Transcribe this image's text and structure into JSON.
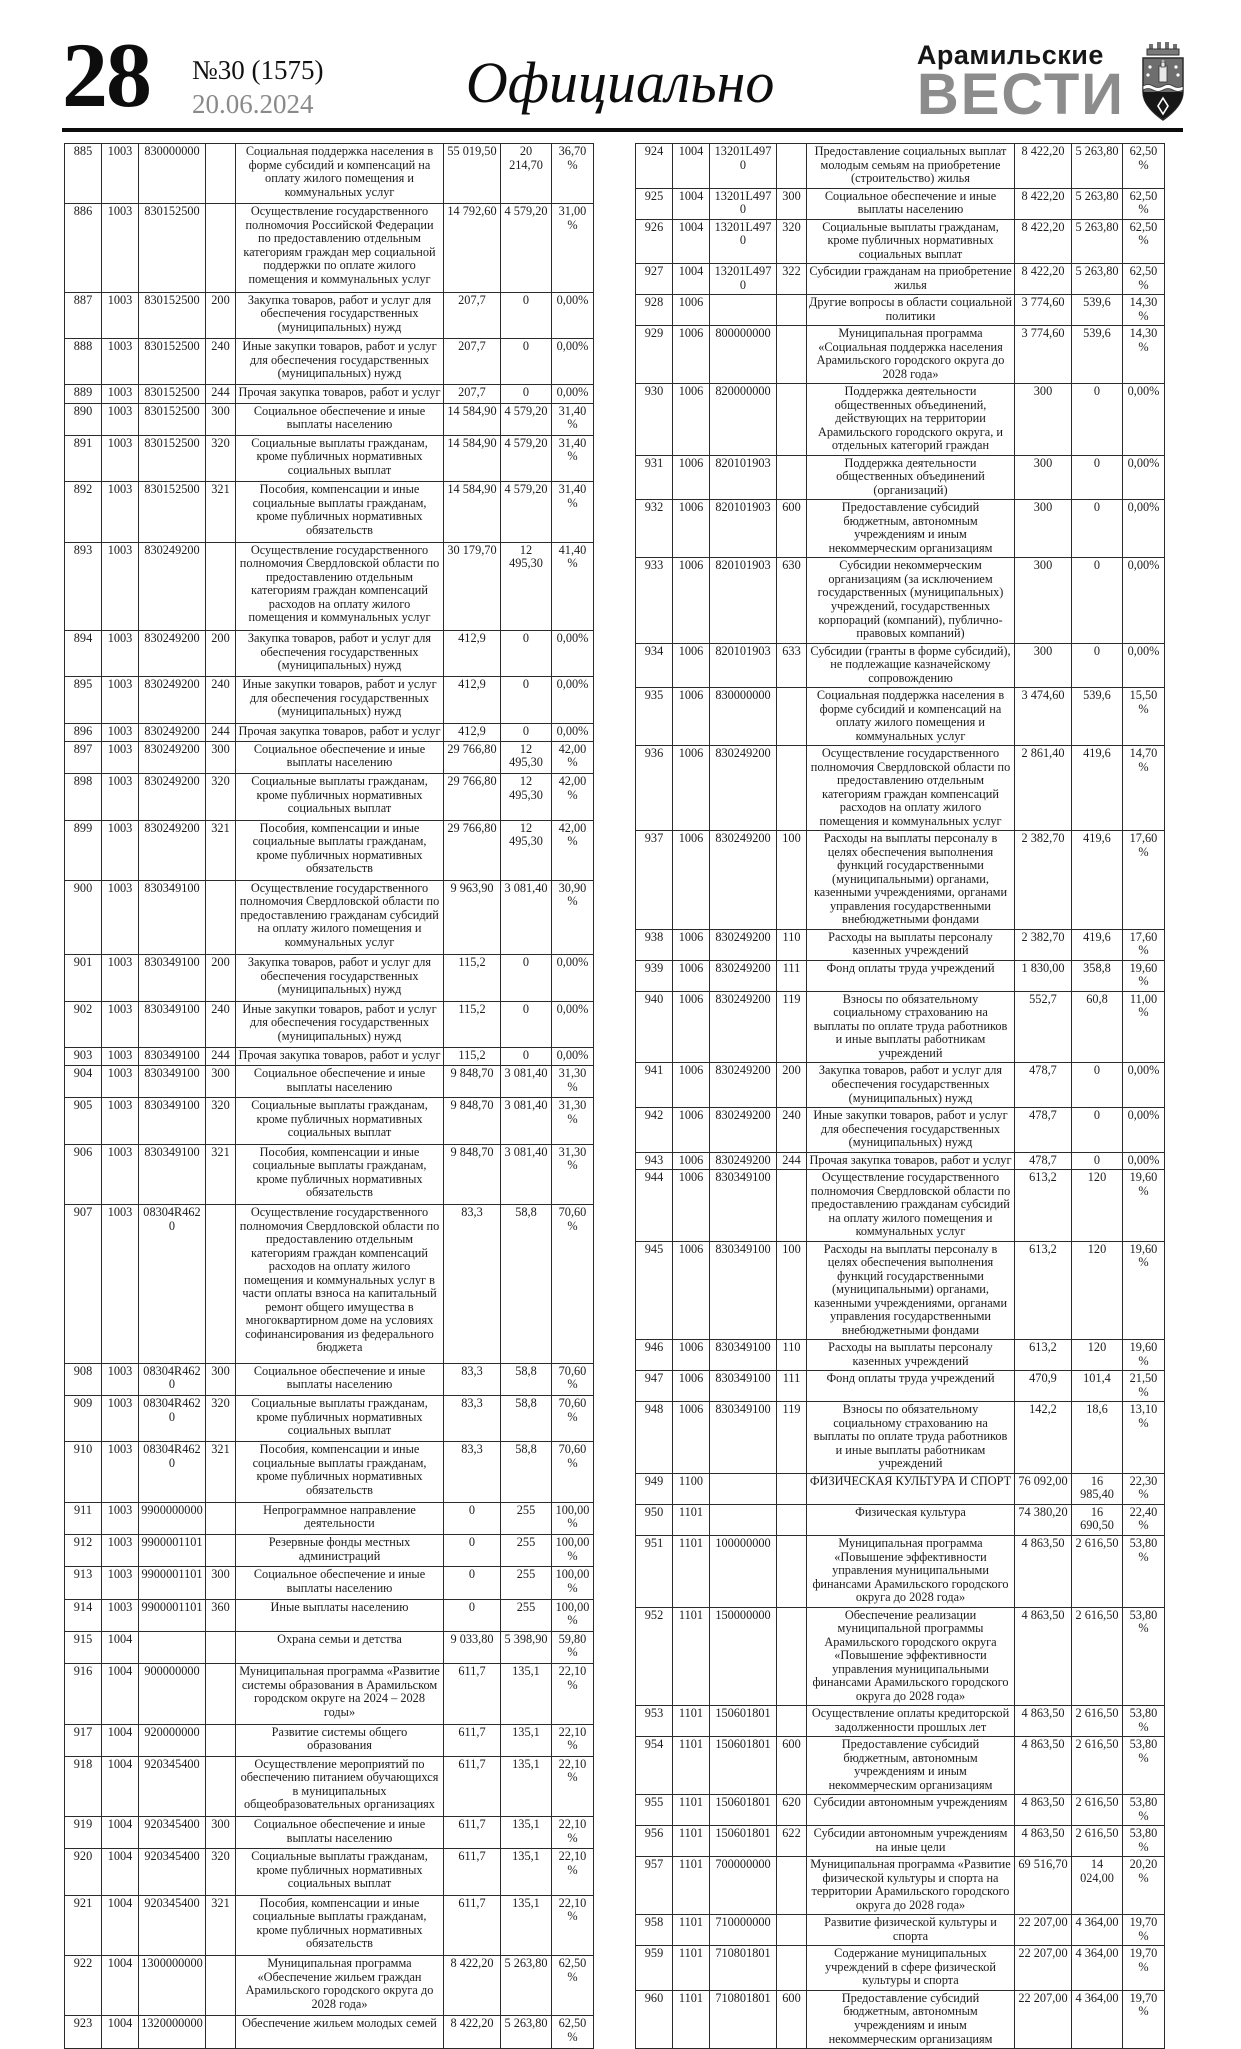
{
  "header": {
    "page_number": "28",
    "issue_no": "№30 (1575)",
    "date": "20.06.2024",
    "section_title": "Официально",
    "brand_top": "Арамильские",
    "brand_bottom": "ВЕСТИ",
    "emblem_name": "coat-of-arms-aramil",
    "colors": {
      "brand_gray": "#8c8c8c",
      "rule_black": "#0c0c0c"
    }
  },
  "table": {
    "columns": [
      "n",
      "sec",
      "code",
      "type",
      "name",
      "v1",
      "v2",
      "pct"
    ],
    "left_rows": [
      [
        "885",
        "1003",
        "830000000",
        "",
        "Социальная поддержка населения в форме субсидий и компенсаций на оплату жилого помещения и коммунальных услуг",
        "55 019,50",
        "20 214,70",
        "36,70%"
      ],
      [
        "886",
        "1003",
        "830152500",
        "",
        "Осуществление государственного полномочия Российской Федерации по предоставлению отдельным категориям граждан мер социальной поддержки по оплате жилого помещения и коммунальных услуг",
        "14 792,60",
        "4 579,20",
        "31,00%"
      ],
      [
        "887",
        "1003",
        "830152500",
        "200",
        "Закупка товаров, работ и услуг для обеспечения государственных (муниципальных) нужд",
        "207,7",
        "0",
        "0,00%"
      ],
      [
        "888",
        "1003",
        "830152500",
        "240",
        "Иные закупки товаров, работ и услуг для обеспечения государственных (муниципальных) нужд",
        "207,7",
        "0",
        "0,00%"
      ],
      [
        "889",
        "1003",
        "830152500",
        "244",
        "Прочая закупка товаров, работ и услуг",
        "207,7",
        "0",
        "0,00%"
      ],
      [
        "890",
        "1003",
        "830152500",
        "300",
        "Социальное обеспечение и иные выплаты населению",
        "14 584,90",
        "4 579,20",
        "31,40%"
      ],
      [
        "891",
        "1003",
        "830152500",
        "320",
        "Социальные выплаты гражданам, кроме публичных нормативных социальных выплат",
        "14 584,90",
        "4 579,20",
        "31,40%"
      ],
      [
        "892",
        "1003",
        "830152500",
        "321",
        "Пособия, компенсации и иные социальные выплаты гражданам, кроме публичных нормативных обязательств",
        "14 584,90",
        "4 579,20",
        "31,40%"
      ],
      [
        "893",
        "1003",
        "830249200",
        "",
        "Осуществление государственного полномочия Свердловской области по предоставлению отдельным категориям граждан компенсаций расходов на оплату жилого помещения и коммунальных услуг",
        "30 179,70",
        "12 495,30",
        "41,40%"
      ],
      [
        "894",
        "1003",
        "830249200",
        "200",
        "Закупка товаров, работ и услуг для обеспечения государственных (муниципальных) нужд",
        "412,9",
        "0",
        "0,00%"
      ],
      [
        "895",
        "1003",
        "830249200",
        "240",
        "Иные закупки товаров, работ и услуг для обеспечения государственных (муниципальных) нужд",
        "412,9",
        "0",
        "0,00%"
      ],
      [
        "896",
        "1003",
        "830249200",
        "244",
        "Прочая закупка товаров, работ и услуг",
        "412,9",
        "0",
        "0,00%"
      ],
      [
        "897",
        "1003",
        "830249200",
        "300",
        "Социальное обеспечение и иные выплаты населению",
        "29 766,80",
        "12 495,30",
        "42,00%"
      ],
      [
        "898",
        "1003",
        "830249200",
        "320",
        "Социальные выплаты гражданам, кроме публичных нормативных социальных выплат",
        "29 766,80",
        "12 495,30",
        "42,00%"
      ],
      [
        "899",
        "1003",
        "830249200",
        "321",
        "Пособия, компенсации и иные социальные выплаты гражданам, кроме публичных нормативных обязательств",
        "29 766,80",
        "12 495,30",
        "42,00%"
      ],
      [
        "900",
        "1003",
        "830349100",
        "",
        "Осуществление государственного полномочия Свердловской области по предоставлению гражданам субсидий на оплату жилого помещения и коммунальных услуг",
        "9 963,90",
        "3 081,40",
        "30,90%"
      ],
      [
        "901",
        "1003",
        "830349100",
        "200",
        "Закупка товаров, работ и услуг для обеспечения государственных (муниципальных) нужд",
        "115,2",
        "0",
        "0,00%"
      ],
      [
        "902",
        "1003",
        "830349100",
        "240",
        "Иные закупки товаров, работ и услуг для обеспечения государственных (муниципальных) нужд",
        "115,2",
        "0",
        "0,00%"
      ],
      [
        "903",
        "1003",
        "830349100",
        "244",
        "Прочая закупка товаров, работ и услуг",
        "115,2",
        "0",
        "0,00%"
      ],
      [
        "904",
        "1003",
        "830349100",
        "300",
        "Социальное обеспечение и иные выплаты населению",
        "9 848,70",
        "3 081,40",
        "31,30%"
      ],
      [
        "905",
        "1003",
        "830349100",
        "320",
        "Социальные выплаты гражданам, кроме публичных нормативных социальных выплат",
        "9 848,70",
        "3 081,40",
        "31,30%"
      ],
      [
        "906",
        "1003",
        "830349100",
        "321",
        "Пособия, компенсации и иные социальные выплаты гражданам, кроме публичных нормативных обязательств",
        "9 848,70",
        "3 081,40",
        "31,30%"
      ],
      [
        "907",
        "1003",
        "08304R4620",
        "",
        "Осуществление государственного полномочия Свердловской области по предоставлению отдельным категориям граждан компенсаций расходов на оплату жилого помещения и коммунальных услуг в части оплаты взноса на капитальный ремонт общего имущества в многоквартирном доме на условиях софинансирования из федерального бюджета",
        "83,3",
        "58,8",
        "70,60%"
      ],
      [
        "908",
        "1003",
        "08304R4620",
        "300",
        "Социальное обеспечение и иные выплаты населению",
        "83,3",
        "58,8",
        "70,60%"
      ],
      [
        "909",
        "1003",
        "08304R4620",
        "320",
        "Социальные выплаты гражданам, кроме публичных нормативных социальных выплат",
        "83,3",
        "58,8",
        "70,60%"
      ],
      [
        "910",
        "1003",
        "08304R4620",
        "321",
        "Пособия, компенсации и иные социальные выплаты гражданам, кроме публичных нормативных обязательств",
        "83,3",
        "58,8",
        "70,60%"
      ],
      [
        "911",
        "1003",
        "9900000000",
        "",
        "Непрограммное направление деятельности",
        "0",
        "255",
        "100,00%"
      ],
      [
        "912",
        "1003",
        "9900001101",
        "",
        "Резервные фонды местных администраций",
        "0",
        "255",
        "100,00%"
      ],
      [
        "913",
        "1003",
        "9900001101",
        "300",
        "Социальное обеспечение и иные выплаты населению",
        "0",
        "255",
        "100,00%"
      ],
      [
        "914",
        "1003",
        "9900001101",
        "360",
        "Иные выплаты населению",
        "0",
        "255",
        "100,00%"
      ],
      [
        "915",
        "1004",
        "",
        "",
        "Охрана семьи и детства",
        "9 033,80",
        "5 398,90",
        "59,80%"
      ],
      [
        "916",
        "1004",
        "900000000",
        "",
        "Муниципальная программа «Развитие системы образования в Арамильском городском округе на 2024 – 2028 годы»",
        "611,7",
        "135,1",
        "22,10%"
      ],
      [
        "917",
        "1004",
        "920000000",
        "",
        "Развитие системы общего образования",
        "611,7",
        "135,1",
        "22,10%"
      ],
      [
        "918",
        "1004",
        "920345400",
        "",
        "Осуществление мероприятий по обеспечению питанием обучающихся в муниципальных общеобразовательных организациях",
        "611,7",
        "135,1",
        "22,10%"
      ],
      [
        "919",
        "1004",
        "920345400",
        "300",
        "Социальное обеспечение и иные выплаты населению",
        "611,7",
        "135,1",
        "22,10%"
      ],
      [
        "920",
        "1004",
        "920345400",
        "320",
        "Социальные выплаты гражданам, кроме публичных нормативных социальных выплат",
        "611,7",
        "135,1",
        "22,10%"
      ],
      [
        "921",
        "1004",
        "920345400",
        "321",
        "Пособия, компенсации и иные социальные выплаты гражданам, кроме публичных нормативных обязательств",
        "611,7",
        "135,1",
        "22,10%"
      ],
      [
        "922",
        "1004",
        "1300000000",
        "",
        "Муниципальная программа «Обеспечение жильем граждан Арамильского городского округа до 2028 года»",
        "8 422,20",
        "5 263,80",
        "62,50%"
      ],
      [
        "923",
        "1004",
        "1320000000",
        "",
        "Обеспечение жильем молодых семей",
        "8 422,20",
        "5 263,80",
        "62,50%"
      ]
    ],
    "right_rows": [
      [
        "924",
        "1004",
        "13201L4970",
        "",
        "Предоставление социальных выплат молодым семьям на приобретение (строительство) жилья",
        "8 422,20",
        "5 263,80",
        "62,50%"
      ],
      [
        "925",
        "1004",
        "13201L4970",
        "300",
        "Социальное обеспечение и иные выплаты населению",
        "8 422,20",
        "5 263,80",
        "62,50%"
      ],
      [
        "926",
        "1004",
        "13201L4970",
        "320",
        "Социальные выплаты гражданам, кроме публичных нормативных социальных выплат",
        "8 422,20",
        "5 263,80",
        "62,50%"
      ],
      [
        "927",
        "1004",
        "13201L4970",
        "322",
        "Субсидии гражданам на приобретение жилья",
        "8 422,20",
        "5 263,80",
        "62,50%"
      ],
      [
        "928",
        "1006",
        "",
        "",
        "Другие вопросы в области социальной политики",
        "3 774,60",
        "539,6",
        "14,30%"
      ],
      [
        "929",
        "1006",
        "800000000",
        "",
        "Муниципальная программа «Социальная поддержка населения Арамильского городского округа до 2028 года»",
        "3 774,60",
        "539,6",
        "14,30%"
      ],
      [
        "930",
        "1006",
        "820000000",
        "",
        "Поддержка деятельности общественных объединений, действующих на территории Арамильского городского округа, и отдельных категорий граждан",
        "300",
        "0",
        "0,00%"
      ],
      [
        "931",
        "1006",
        "820101903",
        "",
        "Поддержка деятельности общественных объединений (организаций)",
        "300",
        "0",
        "0,00%"
      ],
      [
        "932",
        "1006",
        "820101903",
        "600",
        "Предоставление субсидий бюджетным, автономным учреждениям и иным некоммерческим организациям",
        "300",
        "0",
        "0,00%"
      ],
      [
        "933",
        "1006",
        "820101903",
        "630",
        "Субсидии некоммерческим организациям (за исключением государственных (муниципальных) учреждений, государственных корпораций (компаний), публично-правовых компаний)",
        "300",
        "0",
        "0,00%"
      ],
      [
        "934",
        "1006",
        "820101903",
        "633",
        "Субсидии (гранты в форме субсидий), не подлежащие казначейскому сопровождению",
        "300",
        "0",
        "0,00%"
      ],
      [
        "935",
        "1006",
        "830000000",
        "",
        "Социальная поддержка населения в форме субсидий и компенсаций на оплату жилого помещения и коммунальных услуг",
        "3 474,60",
        "539,6",
        "15,50%"
      ],
      [
        "936",
        "1006",
        "830249200",
        "",
        "Осуществление государственного полномочия Свердловской области по предоставлению отдельным категориям граждан компенсаций расходов на оплату жилого помещения и коммунальных услуг",
        "2 861,40",
        "419,6",
        "14,70%"
      ],
      [
        "937",
        "1006",
        "830249200",
        "100",
        "Расходы на выплаты персоналу в целях обеспечения выполнения функций государственными (муниципальными) органами, казенными учреждениями, органами управления государственными внебюджетными фондами",
        "2 382,70",
        "419,6",
        "17,60%"
      ],
      [
        "938",
        "1006",
        "830249200",
        "110",
        "Расходы на выплаты персоналу казенных учреждений",
        "2 382,70",
        "419,6",
        "17,60%"
      ],
      [
        "939",
        "1006",
        "830249200",
        "111",
        "Фонд оплаты труда учреждений",
        "1 830,00",
        "358,8",
        "19,60%"
      ],
      [
        "940",
        "1006",
        "830249200",
        "119",
        "Взносы по обязательному социальному страхованию на выплаты по оплате труда работников и иные выплаты работникам учреждений",
        "552,7",
        "60,8",
        "11,00%"
      ],
      [
        "941",
        "1006",
        "830249200",
        "200",
        "Закупка товаров, работ и услуг для обеспечения государственных (муниципальных) нужд",
        "478,7",
        "0",
        "0,00%"
      ],
      [
        "942",
        "1006",
        "830249200",
        "240",
        "Иные закупки товаров, работ и услуг для обеспечения государственных (муниципальных) нужд",
        "478,7",
        "0",
        "0,00%"
      ],
      [
        "943",
        "1006",
        "830249200",
        "244",
        "Прочая закупка товаров, работ и услуг",
        "478,7",
        "0",
        "0,00%"
      ],
      [
        "944",
        "1006",
        "830349100",
        "",
        "Осуществление государственного полномочия Свердловской области по предоставлению гражданам субсидий на оплату жилого помещения и коммунальных услуг",
        "613,2",
        "120",
        "19,60%"
      ],
      [
        "945",
        "1006",
        "830349100",
        "100",
        "Расходы на выплаты персоналу в целях обеспечения выполнения функций государственными (муниципальными) органами, казенными учреждениями, органами управления государственными внебюджетными фондами",
        "613,2",
        "120",
        "19,60%"
      ],
      [
        "946",
        "1006",
        "830349100",
        "110",
        "Расходы на выплаты персоналу казенных учреждений",
        "613,2",
        "120",
        "19,60%"
      ],
      [
        "947",
        "1006",
        "830349100",
        "111",
        "Фонд оплаты труда учреждений",
        "470,9",
        "101,4",
        "21,50%"
      ],
      [
        "948",
        "1006",
        "830349100",
        "119",
        "Взносы по обязательному социальному страхованию на выплаты по оплате труда работников и иные выплаты работникам учреждений",
        "142,2",
        "18,6",
        "13,10%"
      ],
      [
        "949",
        "1100",
        "",
        "",
        "ФИЗИЧЕСКАЯ КУЛЬТУРА И СПОРТ",
        "76 092,00",
        "16 985,40",
        "22,30%"
      ],
      [
        "950",
        "1101",
        "",
        "",
        "Физическая культура",
        "74 380,20",
        "16 690,50",
        "22,40%"
      ],
      [
        "951",
        "1101",
        "100000000",
        "",
        "Муниципальная программа «Повышение эффективности управления муниципальными финансами Арамильского городского округа до 2028 года»",
        "4 863,50",
        "2 616,50",
        "53,80%"
      ],
      [
        "952",
        "1101",
        "150000000",
        "",
        "Обеспечение реализации муниципальной программы Арамильского городского округа «Повышение эффективности управления муниципальными финансами Арамильского городского округа до 2028 года»",
        "4 863,50",
        "2 616,50",
        "53,80%"
      ],
      [
        "953",
        "1101",
        "150601801",
        "",
        "Осуществление оплаты кредиторской задолженности прошлых лет",
        "4 863,50",
        "2 616,50",
        "53,80%"
      ],
      [
        "954",
        "1101",
        "150601801",
        "600",
        "Предоставление субсидий бюджетным, автономным учреждениям и иным некоммерческим организациям",
        "4 863,50",
        "2 616,50",
        "53,80%"
      ],
      [
        "955",
        "1101",
        "150601801",
        "620",
        "Субсидии автономным учреждениям",
        "4 863,50",
        "2 616,50",
        "53,80%"
      ],
      [
        "956",
        "1101",
        "150601801",
        "622",
        "Субсидии автономным учреждениям на иные цели",
        "4 863,50",
        "2 616,50",
        "53,80%"
      ],
      [
        "957",
        "1101",
        "700000000",
        "",
        "Муниципальная программа «Развитие физической культуры и спорта на территории Арамильского городского округа до 2028 года»",
        "69 516,70",
        "14 024,00",
        "20,20%"
      ],
      [
        "958",
        "1101",
        "710000000",
        "",
        "Развитие физической культуры и спорта",
        "22 207,00",
        "4 364,00",
        "19,70%"
      ],
      [
        "959",
        "1101",
        "710801801",
        "",
        "Содержание муниципальных учреждений в сфере физической культуры и спорта",
        "22 207,00",
        "4 364,00",
        "19,70%"
      ],
      [
        "960",
        "1101",
        "710801801",
        "600",
        "Предоставление субсидий бюджетным, автономным учреждениям и иным некоммерческим организациям",
        "22 207,00",
        "4 364,00",
        "19,70%"
      ]
    ]
  }
}
